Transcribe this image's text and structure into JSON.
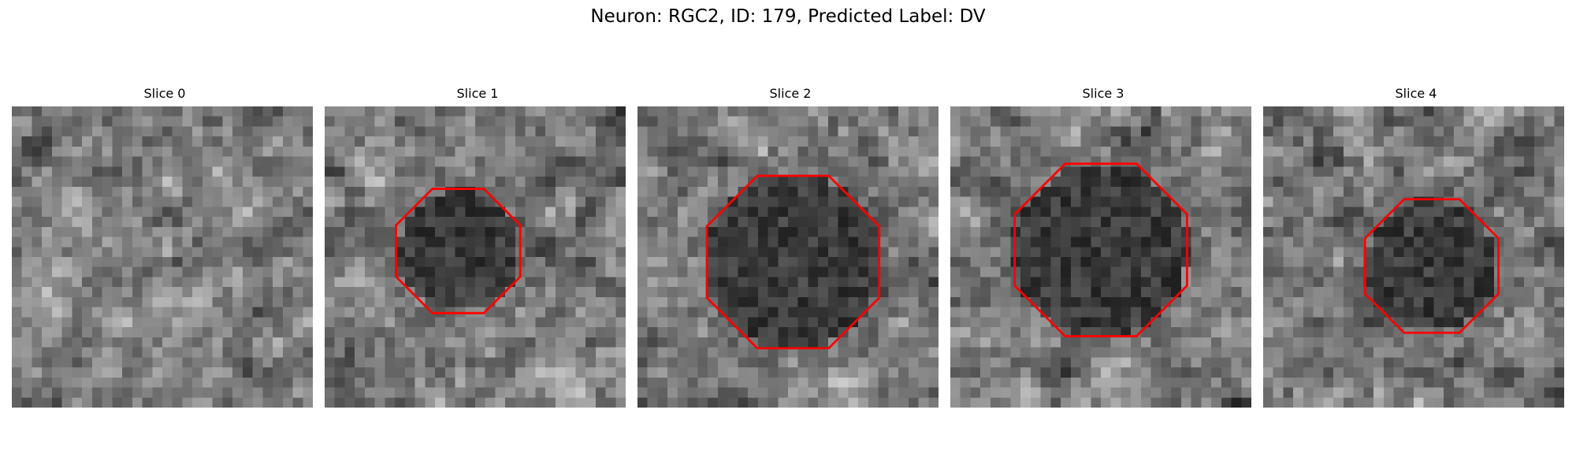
{
  "figure": {
    "title": "Neuron: RGC2, ID: 179, Predicted Label: DV",
    "contour_color": "#ff0000",
    "grid_size": 30,
    "panels": [
      {
        "title": "Slice 0",
        "seed": 11,
        "blob": null
      },
      {
        "title": "Slice 1",
        "seed": 23,
        "blob": {
          "cx": 13.3,
          "cy": 14.4,
          "r": 6.1
        }
      },
      {
        "title": "Slice 2",
        "seed": 37,
        "blob": {
          "cx": 15.5,
          "cy": 15.5,
          "r": 8.7
        }
      },
      {
        "title": "Slice 3",
        "seed": 41,
        "blob": {
          "cx": 15.0,
          "cy": 14.3,
          "r": 8.7
        }
      },
      {
        "title": "Slice 4",
        "seed": 59,
        "blob": {
          "cx": 16.8,
          "cy": 15.9,
          "r": 6.6
        }
      }
    ]
  }
}
